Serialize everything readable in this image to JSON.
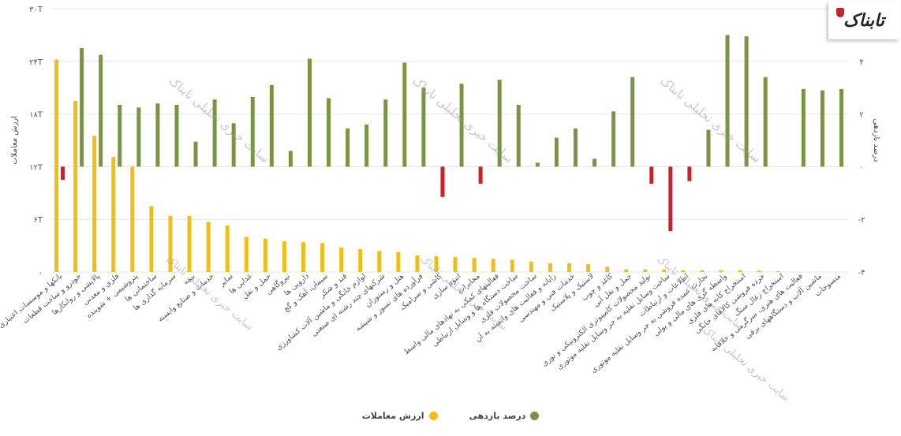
{
  "chart_data": {
    "type": "bar",
    "title": "",
    "left_axis": {
      "title": "ارزش معاملات",
      "ticks": [
        "۰",
        "۶T",
        "۱۲T",
        "۱۸T",
        "۲۴T",
        "۳۰T"
      ],
      "ylim": [
        0,
        30
      ]
    },
    "right_axis": {
      "title": "درصد بازدهی",
      "ticks": [
        "-۴",
        "-۲",
        "۰",
        "۲",
        "۴",
        "۶"
      ],
      "ylim": [
        -4,
        6
      ]
    },
    "categories": [
      "بانکها و موسسات اعتباری",
      "خودرو و ساخت قطعات",
      "پالایشی و روانکارها",
      "فلزی و معدنی",
      "پتروشیمی + شوینده",
      "ساختمانی ها",
      "سرمایه گذاری ها",
      "بیمه",
      "خدمات و صنایع وابسته",
      "سایر",
      "غذایی ها",
      "حمل و نقل",
      "نیروگاهی",
      "دارویی ها",
      "سیمان، آهک و گچ",
      "قند و شکر",
      "لوازم خانگی و ماشین آلات کشاورزی",
      "شرکتهای چند رشته ای صنعتی",
      "هتل و رستوران",
      "فرآورده های نسوز و شیشه",
      "کاشی و سرامیک",
      "انبوه سازی",
      "مخابرات",
      "فعالیتهای کمکی به نهادهای مالی واسط",
      "ساخت دستگاه ها و وسایل ارتباطی",
      "ساخت محصولات فلزی",
      "رایانه و فعالیت های وابسته به آن",
      "خدمات فنی و مهندسی",
      "لاستیک و پلاستیک",
      "کاغذ و چوب",
      "حمل و نقل آبی",
      "تولید محصولات کامپیوتری الکترونیکی و نوری",
      "ساخت وسایل نقلیه به جز وسایل نقلیه موتوری",
      "اطلاعات و ارتباطات",
      "تجارت عمده فروشی به جز وسایل نقلیه موتوری",
      "واسطه گری های مالی و پولی",
      "استخراج کانه های فلزی",
      "خرده فروشی کالاهای خانگی",
      "استخراج زغال سنگ",
      "فعالیت های هنری، سرگرمی و خلاقانه",
      "ماشین آلات و دستگاههای برقی",
      "منسوجات"
    ],
    "series": [
      {
        "name": "ارزش معاملات",
        "axis": "left",
        "color": "#F2BE16",
        "values": [
          24.2,
          19.5,
          15.5,
          13.1,
          12.0,
          7.5,
          6.4,
          6.4,
          5.7,
          5.3,
          4.0,
          3.8,
          3.5,
          3.4,
          3.3,
          2.8,
          2.6,
          2.4,
          2.3,
          1.9,
          1.8,
          1.7,
          1.6,
          1.5,
          1.4,
          1.2,
          1.0,
          1.0,
          0.9,
          0.6,
          0.3,
          0.3,
          0.3,
          0.2,
          0.2,
          0.2,
          0.2,
          0.15,
          0.1,
          0,
          0,
          0
        ]
      },
      {
        "name": "درصد بازدهی",
        "axis": "right",
        "color": "#7B9442",
        "values": [
          -0.5,
          4.5,
          4.25,
          2.35,
          2.25,
          2.4,
          2.35,
          0.95,
          2.55,
          1.65,
          2.65,
          3.1,
          0.6,
          4.1,
          2.6,
          1.45,
          1.6,
          2.55,
          3.95,
          3.0,
          -1.15,
          3.15,
          -0.65,
          3.3,
          2.35,
          0.15,
          1.1,
          1.45,
          0.3,
          2.1,
          3.4,
          -0.65,
          -2.45,
          -0.55,
          1.4,
          5.0,
          4.95,
          3.4,
          0,
          2.95,
          2.9,
          2.95
        ]
      }
    ],
    "legend": [
      "درصد بازدهی",
      "ارزش معاملات"
    ],
    "watermark": [
      "سایت خبری تحلیلی تابناک",
      "سایت خبری تحلیلی تابناک",
      "سایت خبری تحلیلی تابناک",
      "سایت خبری تحلیلی تابناک",
      "سایت خبری تحلیلی تابناک",
      "سایت خبری تحلیلی تابناک",
      "سایت خبری تحلیلی تابناک"
    ]
  },
  "logo": {
    "text": "تابناک"
  }
}
